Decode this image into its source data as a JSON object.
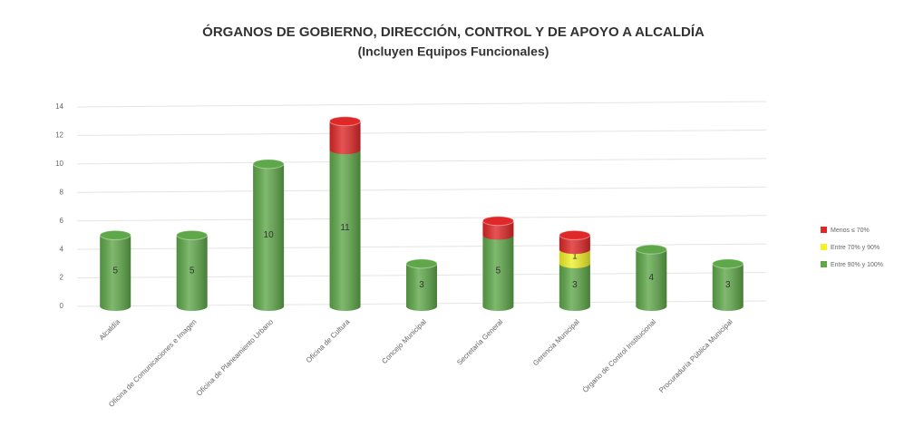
{
  "chart_data": {
    "type": "bar3d_stacked",
    "title": "ÓRGANOS DE GOBIERNO, DIRECCIÓN, CONTROL Y DE APOYO A ALCALDÍA",
    "subtitle": "(Incluyen Equipos Funcionales)",
    "categories": [
      "Alcaldía",
      "Oficina de Comunicaciones e Imagen",
      "Oficina de Planeamiento Urbano",
      "Oficina de Cultura",
      "Concejo Municipal",
      "Secretaría General",
      "Gerencia Municipal",
      "Órgano de Control Institucional",
      "Procuraduría Pública Municipal"
    ],
    "series": [
      {
        "name": "Entre 90% y 100%",
        "color": "#5fa84a",
        "values": [
          5,
          5,
          10,
          11,
          3,
          5,
          3,
          4,
          3
        ],
        "labels": true
      },
      {
        "name": "Entre 70% y 90%",
        "color": "#f2f22a",
        "values": [
          0,
          0,
          0,
          0,
          0,
          0,
          1,
          0,
          0
        ],
        "labels": true
      },
      {
        "name": "Menos ≤ 70%",
        "color": "#e02828",
        "values": [
          0,
          0,
          0,
          2,
          0,
          1,
          1,
          0,
          0
        ],
        "labels": false
      }
    ],
    "ylim": [
      0,
      14
    ],
    "yticks": [
      0,
      2,
      4,
      6,
      8,
      10,
      12,
      14
    ],
    "grid": true,
    "legend": "right"
  }
}
